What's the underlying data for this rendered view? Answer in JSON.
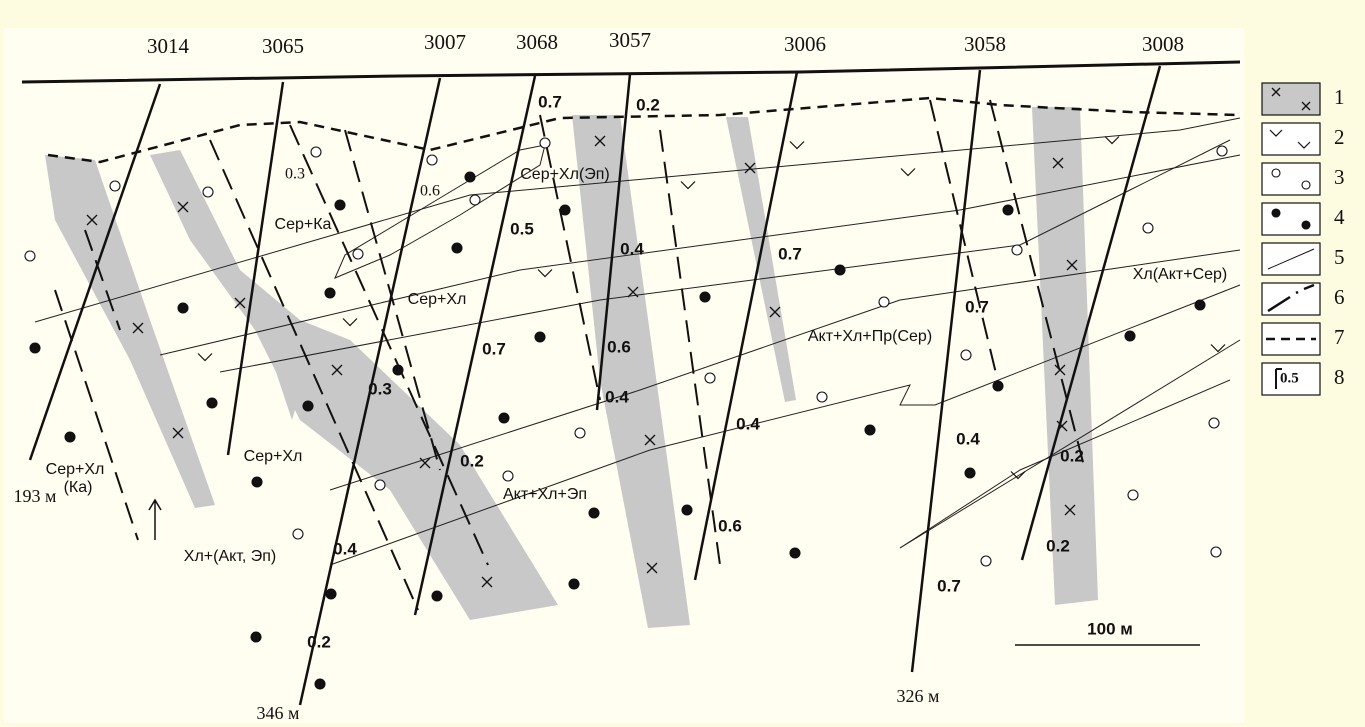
{
  "boreholes": [
    "3014",
    "3065",
    "3007",
    "3068",
    "3057",
    "3006",
    "3058",
    "3008"
  ],
  "depths": [
    "193 м",
    "346 м",
    "326 м"
  ],
  "zones": [
    "Сер+Хл",
    "(Ка)",
    "Сер+Ка",
    "Сер+Хл",
    "Сер+Хл(Эп)",
    "Сер+Хл",
    "Хл+(Акт, Эп)",
    "Акт+Хл+Эп",
    "Акт+Хл+Пр(Сер)",
    "Хл(Акт+Сер)"
  ],
  "grades": [
    "0.3",
    "0.6",
    "0.7",
    "0.2",
    "0.5",
    "0.4",
    "0.7",
    "0.7",
    "0.7",
    "0.6",
    "0.3",
    "0.4",
    "0.4",
    "0.4",
    "0.2",
    "0.2",
    "0.6",
    "0.4",
    "0.2",
    "0.7",
    "0.2"
  ],
  "scale": "100 м",
  "legend": [
    {
      "label": "1"
    },
    {
      "label": "2"
    },
    {
      "label": "3"
    },
    {
      "label": "4"
    },
    {
      "label": "5"
    },
    {
      "label": "6"
    },
    {
      "label": "7"
    },
    {
      "label": "8",
      "sample": "0.5"
    }
  ]
}
